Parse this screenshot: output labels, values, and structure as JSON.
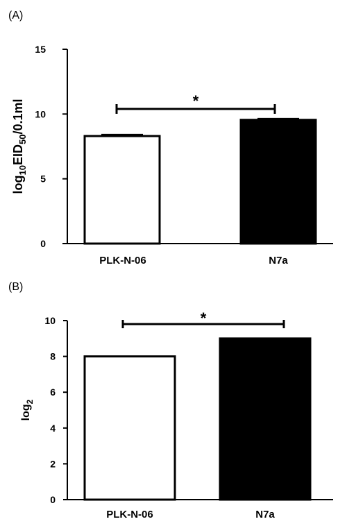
{
  "chart_data": [
    {
      "type": "bar",
      "panel_label": "(A)",
      "categories": [
        "PLK-N-06",
        "N7a"
      ],
      "values": [
        8.3,
        9.55
      ],
      "errors": [
        0.12,
        0.1
      ],
      "bar_fills": [
        "#ffffff",
        "#000000"
      ],
      "ylabel_parts": [
        "log",
        "10",
        "EID",
        "50",
        "/0.1ml"
      ],
      "yticks": [
        "0",
        "5",
        "10",
        "15"
      ],
      "ytick_values": [
        0,
        5,
        10,
        15
      ],
      "ylim": [
        0,
        15
      ],
      "significance": "*",
      "error_bars": true,
      "grid": false,
      "legend": "none"
    },
    {
      "type": "bar",
      "panel_label": "(B)",
      "categories": [
        "PLK-N-06",
        "N7a"
      ],
      "values": [
        8,
        9
      ],
      "bar_fills": [
        "#ffffff",
        "#000000"
      ],
      "ylabel_parts": [
        "log",
        "2"
      ],
      "yticks": [
        "0",
        "2",
        "4",
        "6",
        "8",
        "10"
      ],
      "ytick_values": [
        0,
        2,
        4,
        6,
        8,
        10
      ],
      "ylim": [
        0,
        10
      ],
      "significance": "*",
      "error_bars": false,
      "grid": false,
      "legend": "none"
    }
  ]
}
